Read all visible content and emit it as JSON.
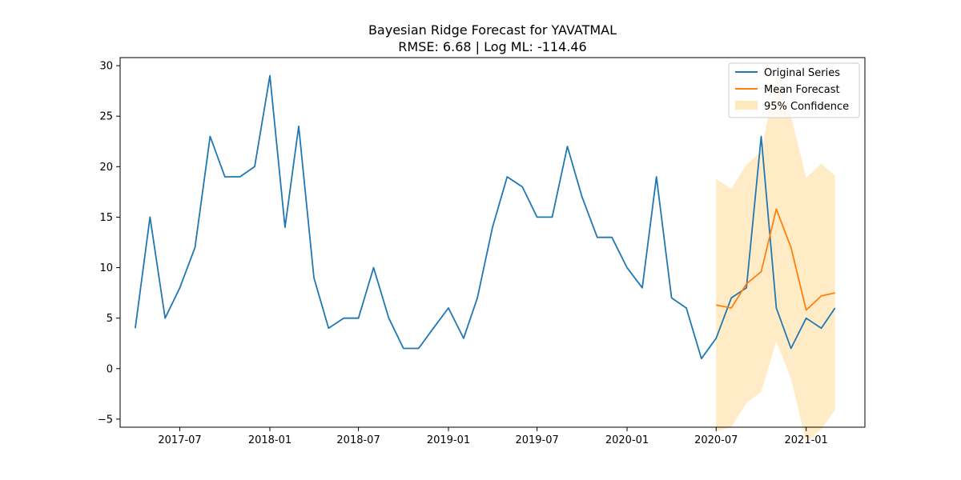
{
  "chart_data": {
    "type": "line",
    "title": "Bayesian Ridge Forecast for YAVATMAL",
    "subtitle": "RMSE: 6.68 | Log ML: -114.46",
    "xlabel": "",
    "ylabel": "",
    "ylim": [
      -5.8,
      30.8
    ],
    "xlim": [
      "2017-03-01",
      "2021-05-01"
    ],
    "x_ticks": [
      {
        "date": "2017-07-01",
        "label": "2017-07"
      },
      {
        "date": "2018-01-01",
        "label": "2018-01"
      },
      {
        "date": "2018-07-01",
        "label": "2018-07"
      },
      {
        "date": "2019-01-01",
        "label": "2019-01"
      },
      {
        "date": "2019-07-01",
        "label": "2019-07"
      },
      {
        "date": "2020-01-01",
        "label": "2020-01"
      },
      {
        "date": "2020-07-01",
        "label": "2020-07"
      },
      {
        "date": "2021-01-01",
        "label": "2021-01"
      }
    ],
    "y_ticks": [
      {
        "value": -5,
        "label": "−5"
      },
      {
        "value": 0,
        "label": "0"
      },
      {
        "value": 5,
        "label": "5"
      },
      {
        "value": 10,
        "label": "10"
      },
      {
        "value": 15,
        "label": "15"
      },
      {
        "value": 20,
        "label": "20"
      },
      {
        "value": 25,
        "label": "25"
      },
      {
        "value": 30,
        "label": "30"
      }
    ],
    "grid": false,
    "legend_position": "top-right",
    "series": [
      {
        "name": "Original Series",
        "color": "#1f77b4",
        "x": [
          "2017-04-01",
          "2017-05-01",
          "2017-06-01",
          "2017-07-01",
          "2017-08-01",
          "2017-09-01",
          "2017-10-01",
          "2017-11-01",
          "2017-12-01",
          "2018-01-01",
          "2018-02-01",
          "2018-03-01",
          "2018-04-01",
          "2018-05-01",
          "2018-06-01",
          "2018-07-01",
          "2018-08-01",
          "2018-09-01",
          "2018-10-01",
          "2018-11-01",
          "2018-12-01",
          "2019-01-01",
          "2019-02-01",
          "2019-03-01",
          "2019-04-01",
          "2019-05-01",
          "2019-06-01",
          "2019-07-01",
          "2019-08-01",
          "2019-09-01",
          "2019-10-01",
          "2019-11-01",
          "2019-12-01",
          "2020-01-01",
          "2020-02-01",
          "2020-03-01",
          "2020-04-01",
          "2020-05-01",
          "2020-06-01",
          "2020-07-01",
          "2020-08-01",
          "2020-09-01",
          "2020-10-01",
          "2020-11-01",
          "2020-12-01",
          "2021-01-01",
          "2021-02-01",
          "2021-03-01"
        ],
        "values": [
          4,
          15,
          5,
          8,
          12,
          23,
          19,
          19,
          20,
          29,
          14,
          24,
          9,
          4,
          5,
          5,
          10,
          5,
          2,
          2,
          4,
          6,
          3,
          7,
          14,
          19,
          18,
          15,
          15,
          22,
          17,
          13,
          13,
          10,
          8,
          19,
          7,
          6,
          1,
          3,
          7,
          8,
          23,
          6,
          2,
          5,
          4,
          6
        ]
      },
      {
        "name": "Mean Forecast",
        "color": "#ff7f0e",
        "x": [
          "2020-07-01",
          "2020-08-01",
          "2020-09-01",
          "2020-10-01",
          "2020-11-01",
          "2020-12-01",
          "2021-01-01",
          "2021-02-01",
          "2021-03-01"
        ],
        "values": [
          6.3,
          6.0,
          8.4,
          9.6,
          15.8,
          12.0,
          5.8,
          7.2,
          7.5
        ]
      }
    ],
    "confidence_band": {
      "name": "95% Confidence",
      "color": "#ffe5b4",
      "x": [
        "2020-07-01",
        "2020-08-01",
        "2020-09-01",
        "2020-10-01",
        "2020-11-01",
        "2020-12-01",
        "2021-01-01",
        "2021-02-01",
        "2021-03-01"
      ],
      "lower": [
        -6.2,
        -5.8,
        -3.4,
        -2.3,
        2.7,
        -1.0,
        -7.3,
        -6.0,
        -4.1
      ],
      "upper": [
        18.8,
        17.8,
        20.2,
        21.5,
        29.0,
        25.0,
        18.9,
        20.3,
        19.1
      ]
    }
  }
}
